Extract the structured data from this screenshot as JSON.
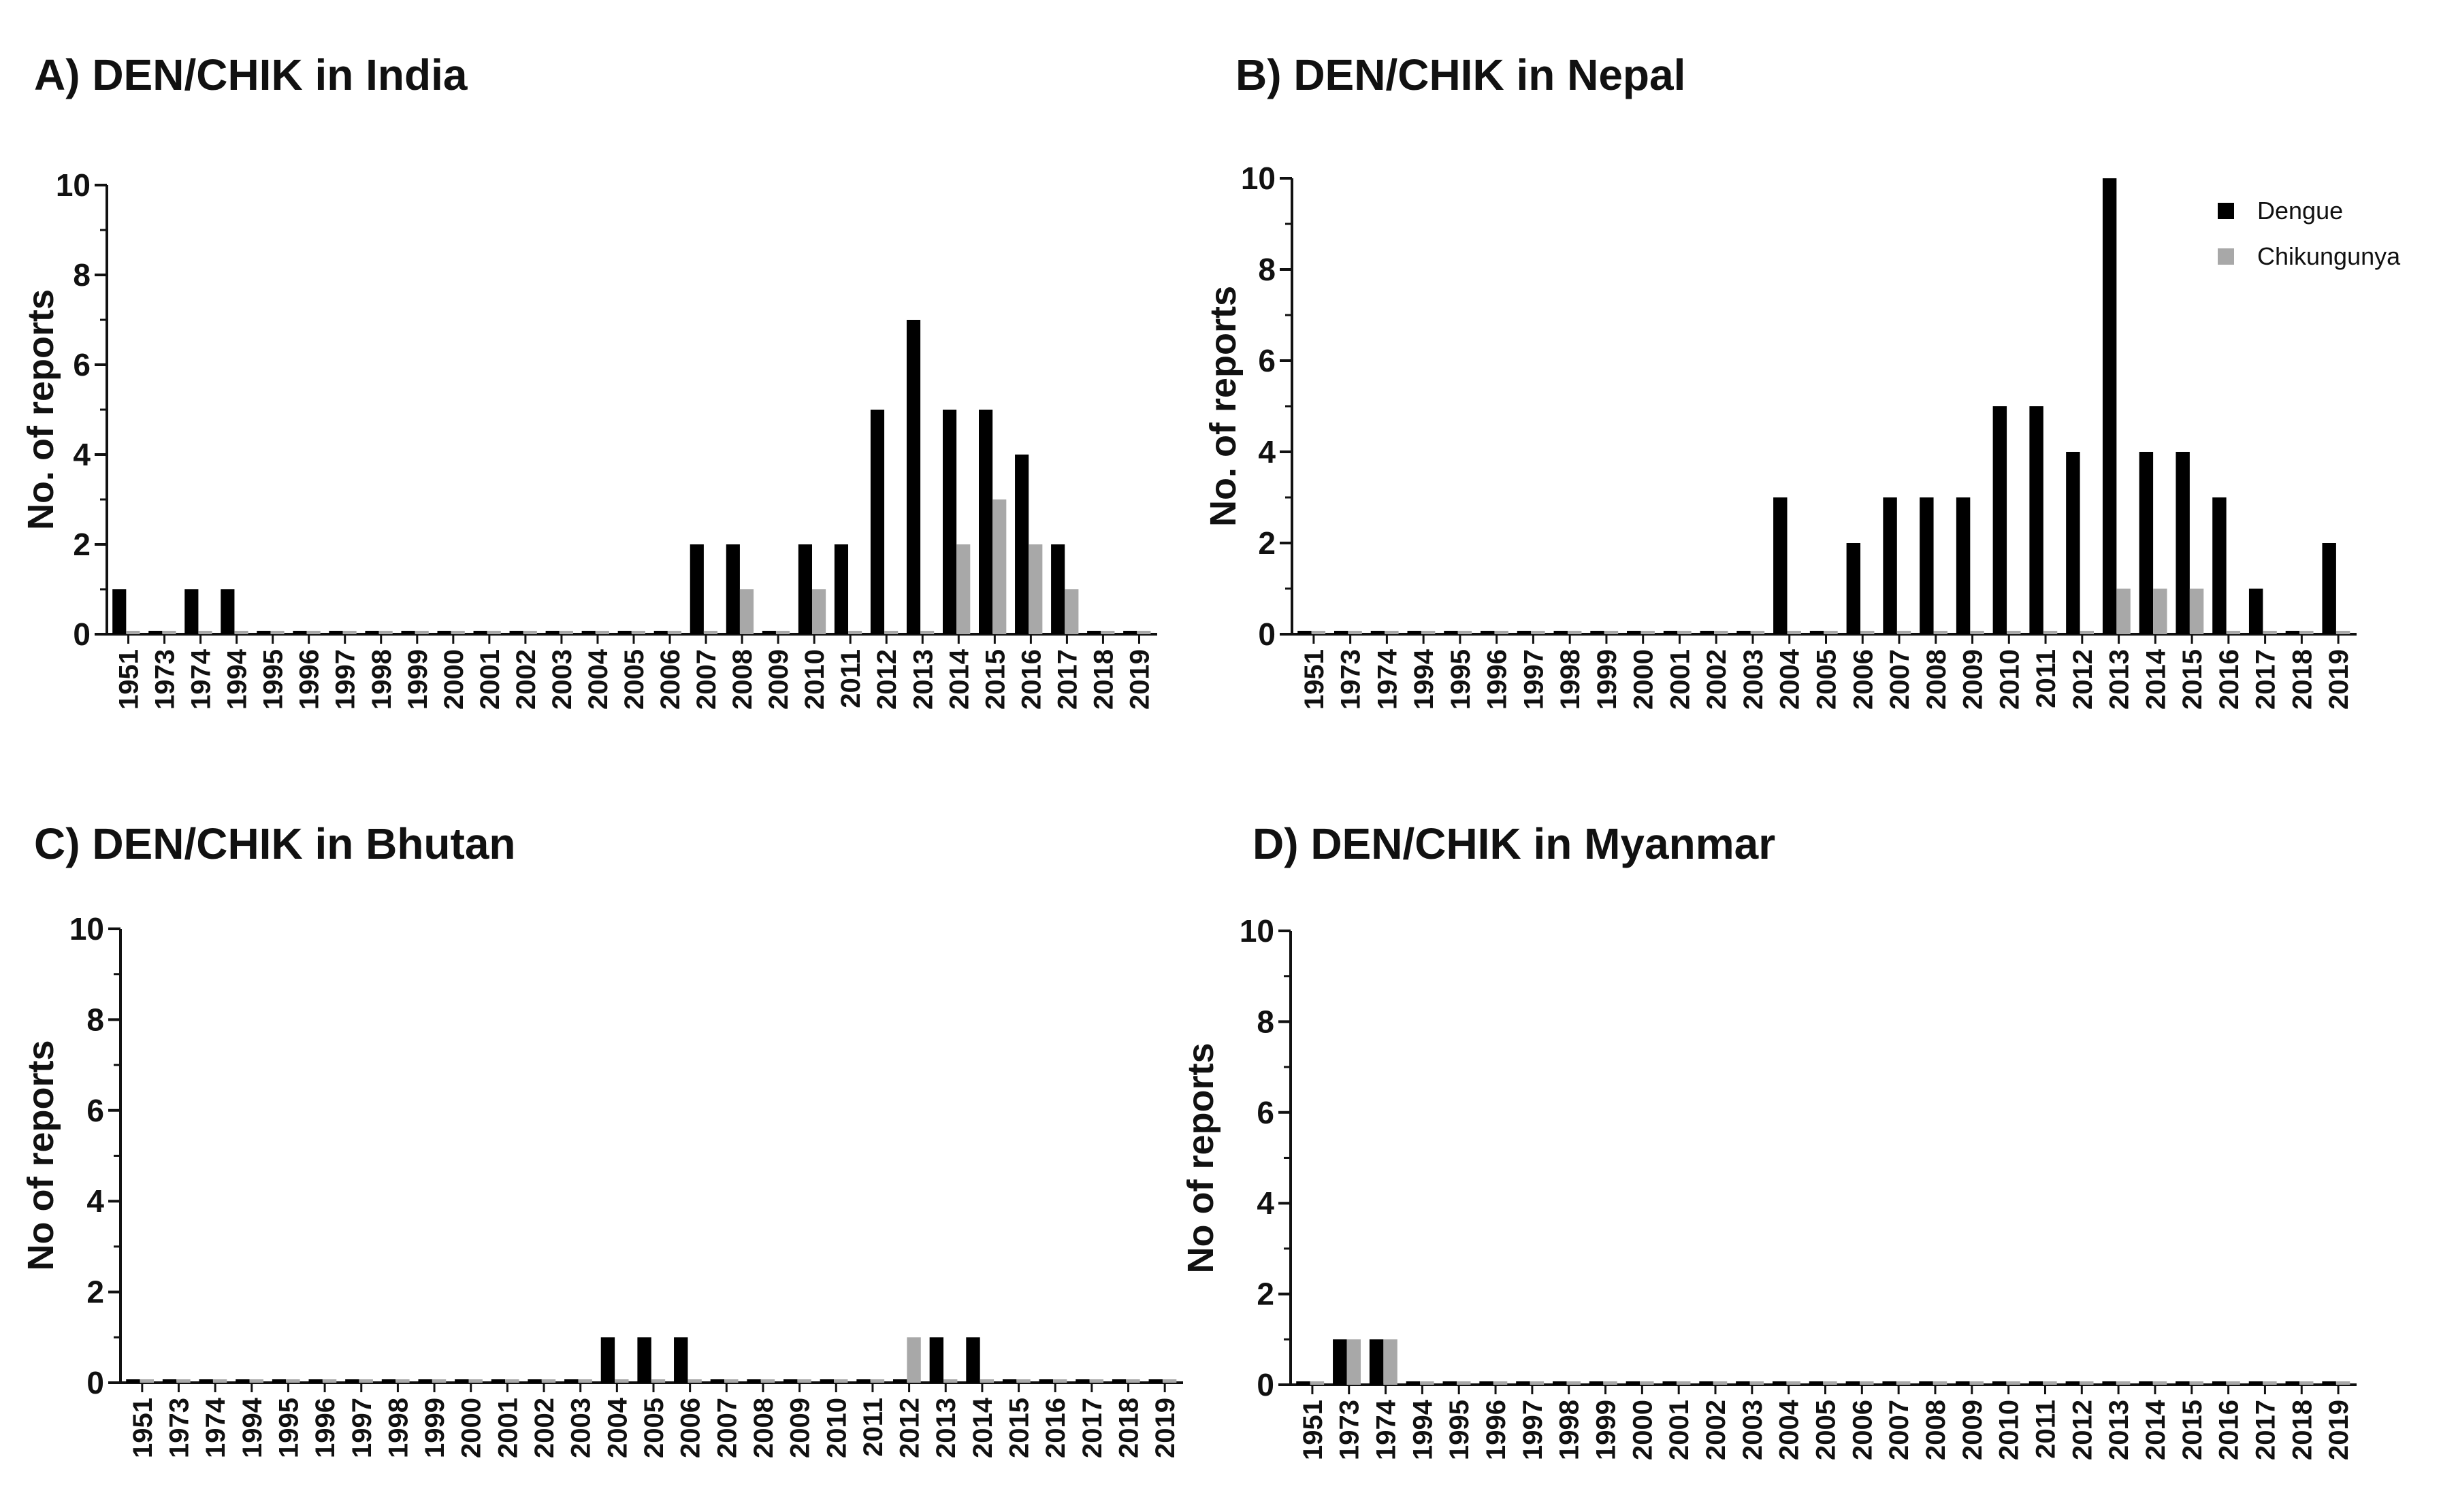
{
  "colors": {
    "dengue": "#000000",
    "chikungunya": "#a8a8a8"
  },
  "legend": {
    "dengue": "Dengue",
    "chikungunya": "Chikungunya"
  },
  "chart_data": [
    {
      "type": "bar",
      "title": "A) DEN/CHIK in India",
      "ylabel": "No. of reports",
      "xlabel": "",
      "ylim": [
        0,
        10
      ],
      "yticks": [
        "0",
        "2",
        "4",
        "6",
        "8",
        "10"
      ],
      "categories": [
        "1951",
        "1973",
        "1974",
        "1994",
        "1995",
        "1996",
        "1997",
        "1998",
        "1999",
        "2000",
        "2001",
        "2002",
        "2003",
        "2004",
        "2005",
        "2006",
        "2007",
        "2008",
        "2009",
        "2010",
        "2011",
        "2012",
        "2013",
        "2014",
        "2015",
        "2016",
        "2017",
        "2018",
        "2019"
      ],
      "series": [
        {
          "name": "Dengue",
          "values": [
            1,
            0,
            1,
            1,
            0,
            0,
            0,
            0,
            0,
            0,
            0,
            0,
            0,
            0,
            0,
            0,
            2,
            2,
            0,
            2,
            2,
            5,
            7,
            5,
            5,
            4,
            2,
            0,
            0
          ]
        },
        {
          "name": "Chikungunya",
          "values": [
            0,
            0,
            0,
            0,
            0,
            0,
            0,
            0,
            0,
            0,
            0,
            0,
            0,
            0,
            0,
            0,
            0,
            1,
            0,
            1,
            0,
            0,
            0,
            2,
            3,
            2,
            1,
            0,
            0
          ]
        }
      ]
    },
    {
      "type": "bar",
      "title": "B) DEN/CHIK in Nepal",
      "ylabel": "No. of reports",
      "xlabel": "",
      "ylim": [
        0,
        10
      ],
      "yticks": [
        "0",
        "2",
        "4",
        "6",
        "8",
        "10"
      ],
      "legend_position": "top-right",
      "categories": [
        "1951",
        "1973",
        "1974",
        "1994",
        "1995",
        "1996",
        "1997",
        "1998",
        "1999",
        "2000",
        "2001",
        "2002",
        "2003",
        "2004",
        "2005",
        "2006",
        "2007",
        "2008",
        "2009",
        "2010",
        "2011",
        "2012",
        "2013",
        "2014",
        "2015",
        "2016",
        "2017",
        "2018",
        "2019"
      ],
      "series": [
        {
          "name": "Dengue",
          "values": [
            0,
            0,
            0,
            0,
            0,
            0,
            0,
            0,
            0,
            0,
            0,
            0,
            0,
            3,
            0,
            2,
            3,
            3,
            3,
            5,
            5,
            4,
            10,
            4,
            4,
            3,
            1,
            0,
            2
          ]
        },
        {
          "name": "Chikungunya",
          "values": [
            0,
            0,
            0,
            0,
            0,
            0,
            0,
            0,
            0,
            0,
            0,
            0,
            0,
            0,
            0,
            0,
            0,
            0,
            0,
            0,
            0,
            0,
            1,
            1,
            1,
            0,
            0,
            0,
            0
          ]
        }
      ]
    },
    {
      "type": "bar",
      "title": "C) DEN/CHIK in Bhutan",
      "ylabel": "No of reports",
      "xlabel": "",
      "ylim": [
        0,
        10
      ],
      "yticks": [
        "0",
        "2",
        "4",
        "6",
        "8",
        "10"
      ],
      "categories": [
        "1951",
        "1973",
        "1974",
        "1994",
        "1995",
        "1996",
        "1997",
        "1998",
        "1999",
        "2000",
        "2001",
        "2002",
        "2003",
        "2004",
        "2005",
        "2006",
        "2007",
        "2008",
        "2009",
        "2010",
        "2011",
        "2012",
        "2013",
        "2014",
        "2015",
        "2016",
        "2017",
        "2018",
        "2019"
      ],
      "series": [
        {
          "name": "Dengue",
          "values": [
            0,
            0,
            0,
            0,
            0,
            0,
            0,
            0,
            0,
            0,
            0,
            0,
            0,
            1,
            1,
            1,
            0,
            0,
            0,
            0,
            0,
            0,
            1,
            1,
            0,
            0,
            0,
            0,
            0
          ]
        },
        {
          "name": "Chikungunya",
          "values": [
            0,
            0,
            0,
            0,
            0,
            0,
            0,
            0,
            0,
            0,
            0,
            0,
            0,
            0,
            0,
            0,
            0,
            0,
            0,
            0,
            0,
            1,
            0,
            0,
            0,
            0,
            0,
            0,
            0
          ]
        }
      ]
    },
    {
      "type": "bar",
      "title": "D) DEN/CHIK in Myanmar",
      "ylabel": "No of reports",
      "xlabel": "",
      "ylim": [
        0,
        10
      ],
      "yticks": [
        "0",
        "2",
        "4",
        "6",
        "8",
        "10"
      ],
      "categories": [
        "1951",
        "1973",
        "1974",
        "1994",
        "1995",
        "1996",
        "1997",
        "1998",
        "1999",
        "2000",
        "2001",
        "2002",
        "2003",
        "2004",
        "2005",
        "2006",
        "2007",
        "2008",
        "2009",
        "2010",
        "2011",
        "2012",
        "2013",
        "2014",
        "2015",
        "2016",
        "2017",
        "2018",
        "2019"
      ],
      "series": [
        {
          "name": "Dengue",
          "values": [
            0,
            1,
            1,
            0,
            0,
            0,
            0,
            0,
            0,
            0,
            0,
            0,
            0,
            0,
            0,
            0,
            0,
            0,
            0,
            0,
            0,
            0,
            0,
            0,
            0,
            0,
            0,
            0,
            0
          ]
        },
        {
          "name": "Chikungunya",
          "values": [
            0,
            1,
            1,
            0,
            0,
            0,
            0,
            0,
            0,
            0,
            0,
            0,
            0,
            0,
            0,
            0,
            0,
            0,
            0,
            0,
            0,
            0,
            0,
            0,
            0,
            0,
            0,
            0,
            0
          ]
        }
      ]
    }
  ]
}
